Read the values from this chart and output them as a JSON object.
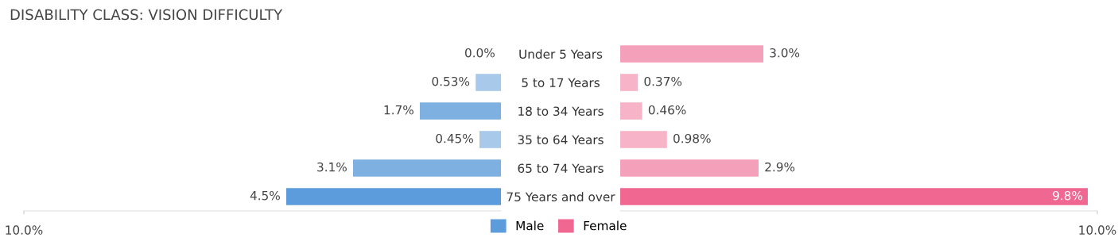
{
  "chart_data": [
    {
      "type": "bar",
      "orientation": "horizontal",
      "title": "DISABILITY CLASS: VISION DIFFICULTY",
      "categories": [
        "Under 5 Years",
        "5 to 17 Years",
        "18 to 34 Years",
        "35 to 64 Years",
        "65 to 74 Years",
        "75 Years and over"
      ],
      "series": [
        {
          "name": "Male",
          "color": "#5d9cdc",
          "values": [
            0.0,
            0.53,
            1.7,
            0.45,
            3.1,
            4.5
          ],
          "value_labels": [
            "0.0%",
            "0.53%",
            "1.7%",
            "0.45%",
            "3.1%",
            "4.5%"
          ],
          "colors": [
            "#a9c9ea",
            "#a9c9ea",
            "#7fb0e2",
            "#a9c9ea",
            "#7fb0e2",
            "#5d9cdc"
          ]
        }
      ],
      "xlim": [
        10,
        0
      ],
      "xticks": [
        {
          "value": 10,
          "label": "10.0%"
        }
      ],
      "legend": "bottom"
    },
    {
      "type": "bar",
      "orientation": "horizontal",
      "series": [
        {
          "name": "Female",
          "color": "#f06792",
          "values": [
            3.0,
            0.37,
            0.46,
            0.98,
            2.9,
            9.8
          ],
          "value_labels": [
            "3.0%",
            "0.37%",
            "0.46%",
            "0.98%",
            "2.9%",
            "9.8%"
          ],
          "colors": [
            "#f5a0bb",
            "#f7b3c8",
            "#f7b3c8",
            "#f7b3c8",
            "#f5a0bb",
            "#f06792"
          ]
        }
      ],
      "xlim": [
        0,
        10
      ],
      "xticks": [
        {
          "value": 10,
          "label": "10.0%"
        }
      ],
      "tick_labels": "x",
      "legend": "bottom"
    }
  ]
}
